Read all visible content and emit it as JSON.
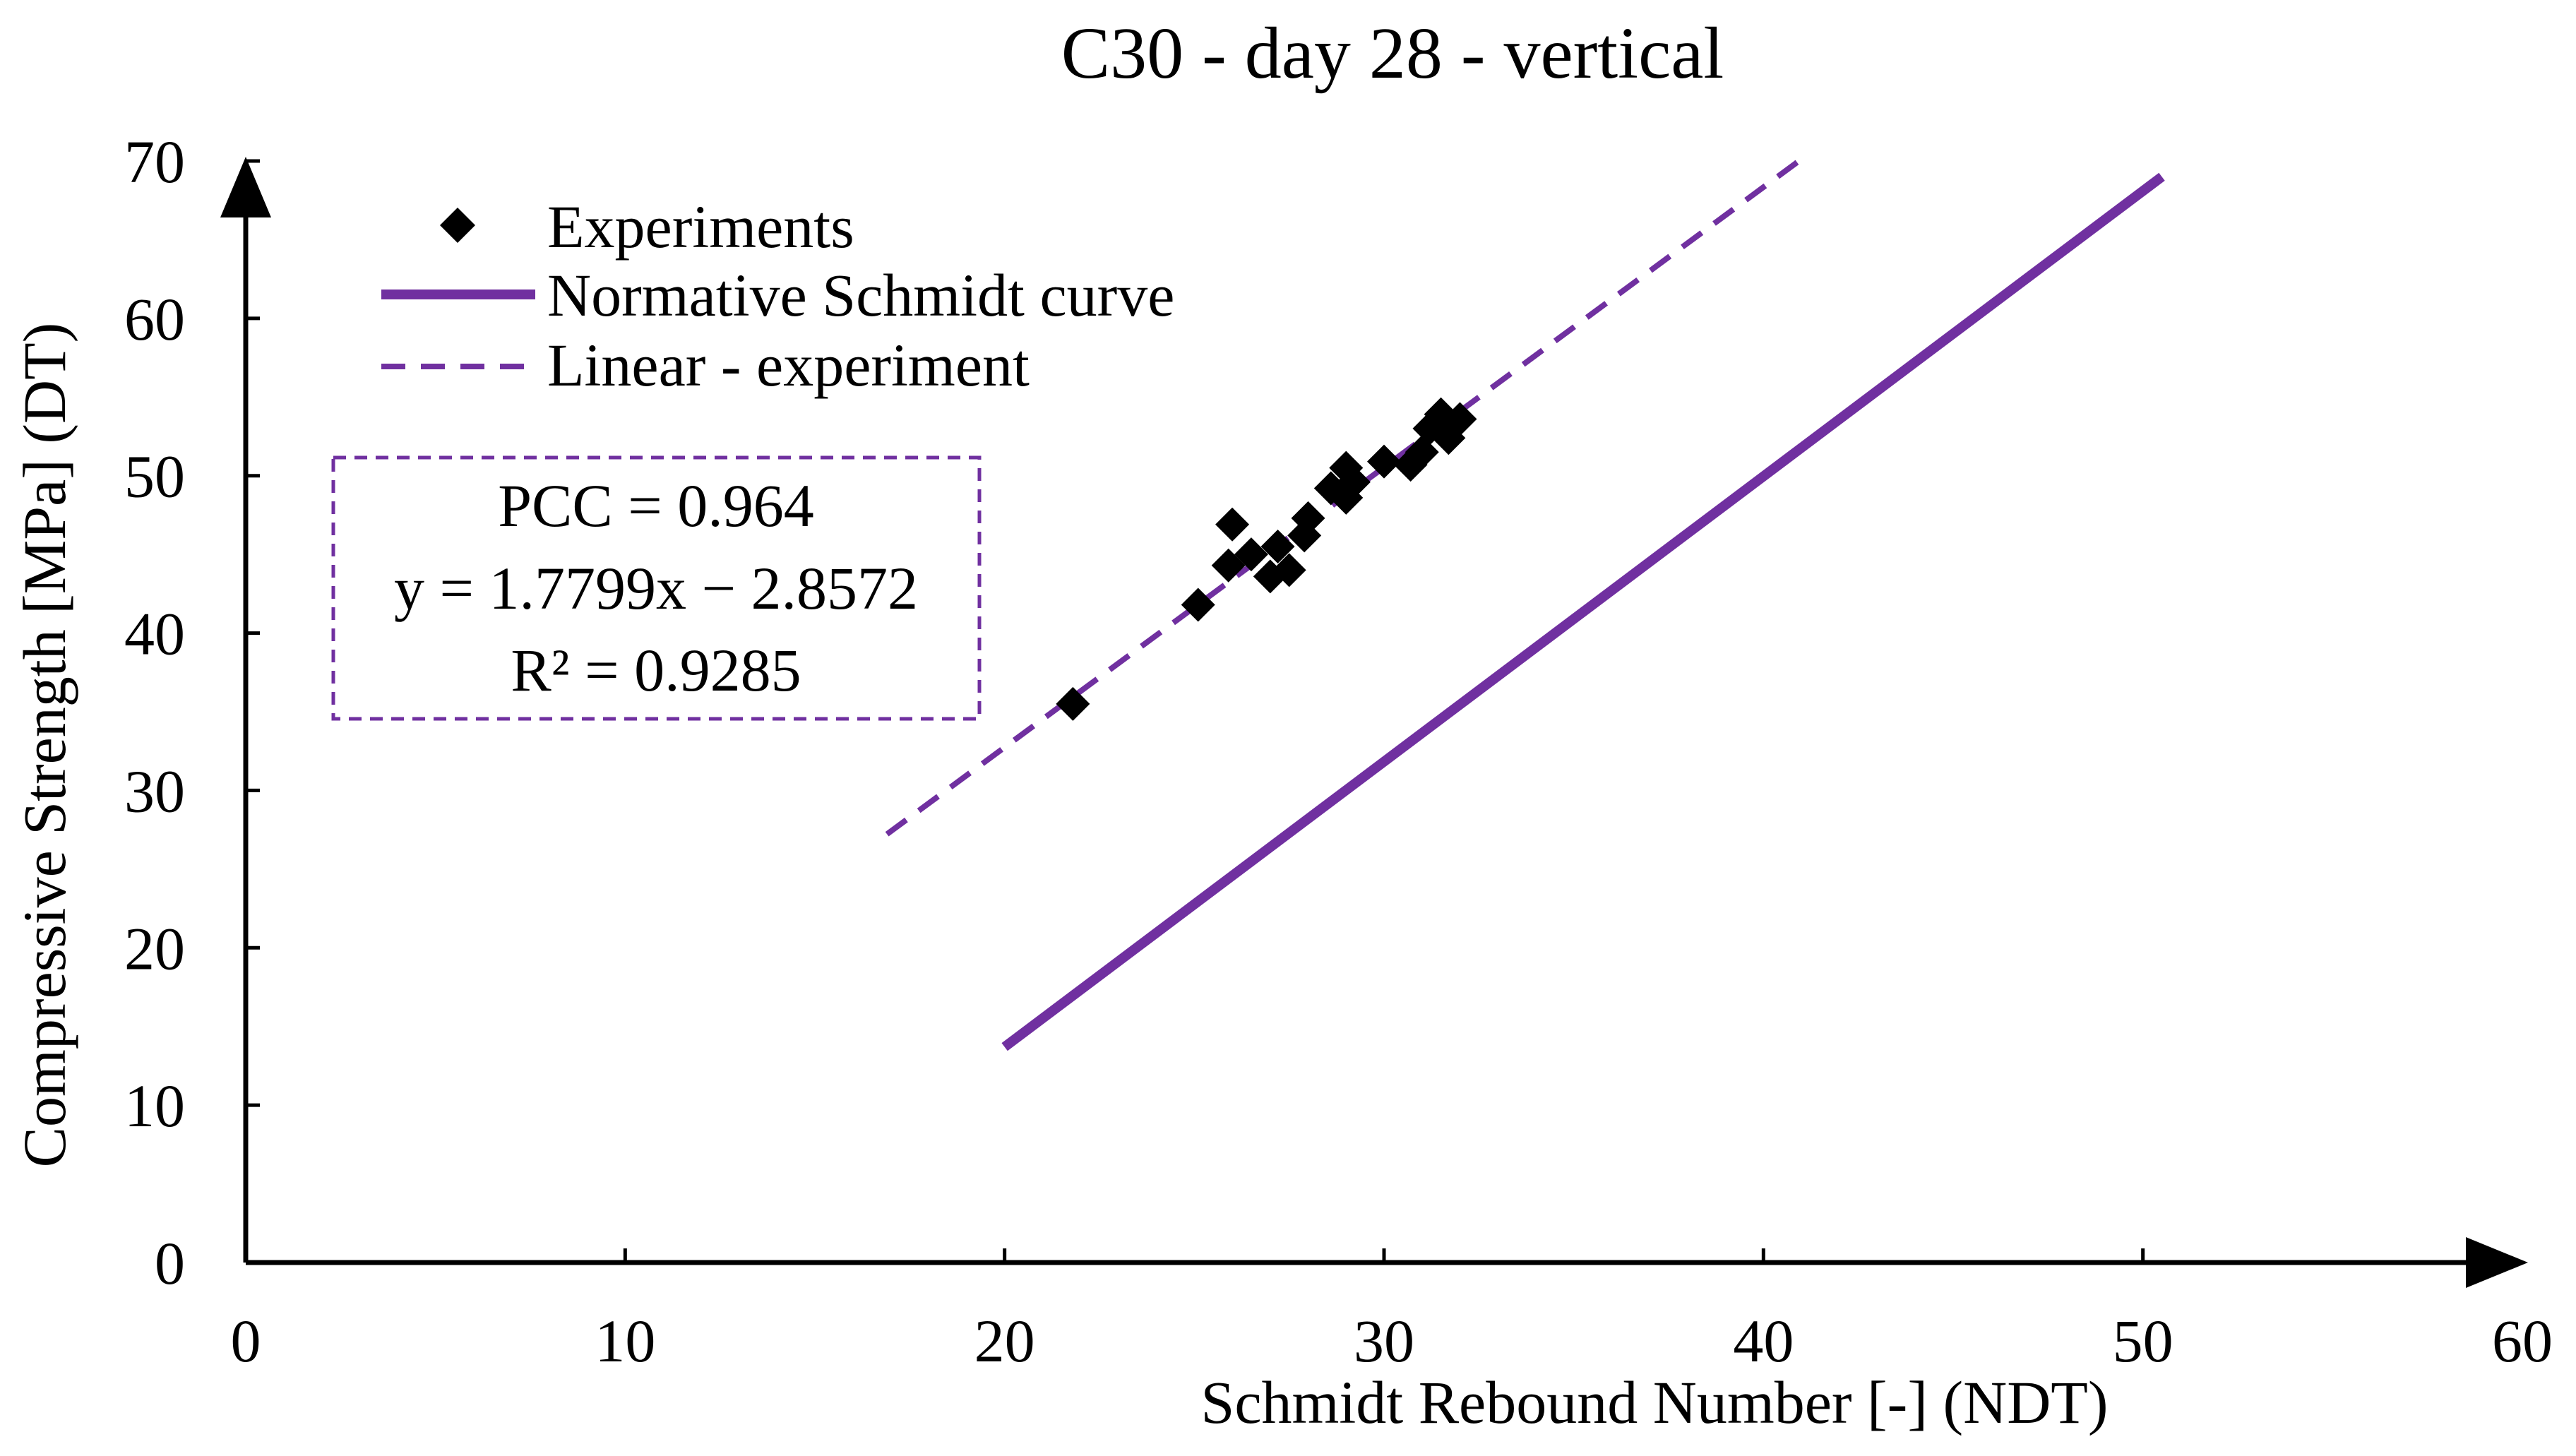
{
  "chart_data": {
    "type": "scatter",
    "title": "C30 - day 28 - vertical",
    "xlabel": "Schmidt Rebound Number [-] (NDT)",
    "ylabel": "Compressive Strength [MPa] (DT)",
    "xlim": [
      0,
      60
    ],
    "ylim": [
      0,
      70
    ],
    "xticks": [
      0,
      10,
      20,
      30,
      40,
      50,
      60
    ],
    "yticks": [
      0,
      10,
      20,
      30,
      40,
      50,
      60,
      70
    ],
    "grid": false,
    "legend": {
      "position": "top-left",
      "entries": [
        "Experiments",
        "Normative Schmidt curve",
        "Linear - experiment"
      ]
    },
    "series": [
      {
        "name": "Experiments",
        "kind": "scatter",
        "marker": "diamond",
        "color": "#000000",
        "points": [
          [
            21.8,
            35.5
          ],
          [
            25.1,
            41.8
          ],
          [
            25.9,
            44.3
          ],
          [
            26.0,
            46.9
          ],
          [
            26.5,
            45.0
          ],
          [
            27.0,
            43.6
          ],
          [
            27.2,
            45.5
          ],
          [
            27.5,
            44.0
          ],
          [
            27.9,
            46.2
          ],
          [
            28.0,
            47.3
          ],
          [
            28.6,
            49.2
          ],
          [
            29.0,
            50.5
          ],
          [
            29.0,
            48.6
          ],
          [
            29.2,
            49.6
          ],
          [
            30.0,
            50.9
          ],
          [
            30.7,
            50.7
          ],
          [
            31.0,
            51.5
          ],
          [
            31.2,
            53.0
          ],
          [
            31.5,
            53.9
          ],
          [
            31.7,
            52.4
          ],
          [
            32.0,
            53.6
          ]
        ]
      },
      {
        "name": "Normative Schmidt curve",
        "kind": "line",
        "style": "solid",
        "color": "#7030A0",
        "points": [
          [
            20,
            13.7
          ],
          [
            50.5,
            69.0
          ]
        ]
      },
      {
        "name": "Linear - experiment",
        "kind": "line",
        "style": "dashed",
        "color": "#7030A0",
        "slope": 1.7799,
        "intercept": -2.8572,
        "xrange": [
          16.9,
          41.0
        ]
      }
    ],
    "annotation": {
      "lines": [
        "PCC = 0.964",
        "y = 1.7799x − 2.8572",
        "R² = 0.9285"
      ]
    }
  }
}
